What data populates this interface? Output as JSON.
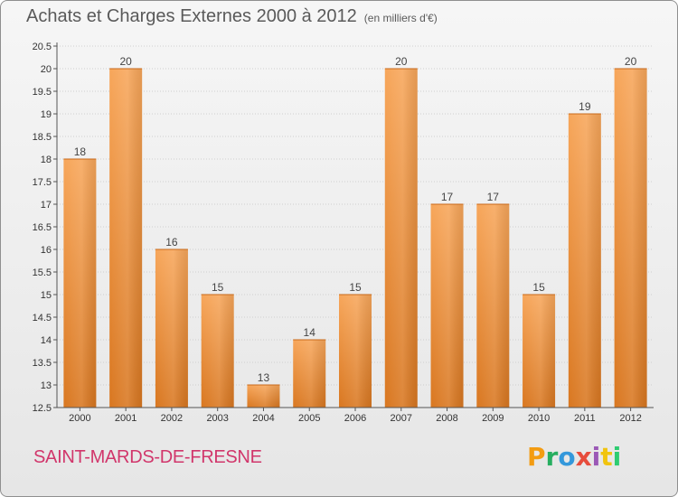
{
  "header": {
    "title": "Achats et Charges Externes 2000 à 2012",
    "unit": "(en milliers d'€)"
  },
  "footer": {
    "commune": "SAINT-MARDS-DE-FRESNE",
    "logo_text": "Proxiti",
    "logo_colors": [
      "#f39c12",
      "#27ae60",
      "#3498db",
      "#e74c3c",
      "#9b59b6",
      "#f1c40f",
      "#2ecc71"
    ]
  },
  "colors": {
    "bar_light": "#f7a65a",
    "bar_dark": "#d97720",
    "grid": "#cfcfcf",
    "axis": "#555555"
  },
  "chart_data": {
    "type": "bar",
    "title": "Achats et Charges Externes 2000 à 2012",
    "categories": [
      "2000",
      "2001",
      "2002",
      "2003",
      "2004",
      "2005",
      "2006",
      "2007",
      "2008",
      "2009",
      "2010",
      "2011",
      "2012"
    ],
    "values": [
      18,
      20,
      16,
      15,
      13,
      14,
      15,
      20,
      17,
      17,
      15,
      19,
      20
    ],
    "ylim": [
      12.5,
      20.5
    ],
    "yticks": [
      "12.5",
      "13",
      "13.5",
      "14",
      "14.5",
      "15",
      "15.5",
      "16",
      "16.5",
      "17",
      "17.5",
      "18",
      "18.5",
      "19",
      "19.5",
      "20",
      "20.5"
    ],
    "grid": true
  }
}
